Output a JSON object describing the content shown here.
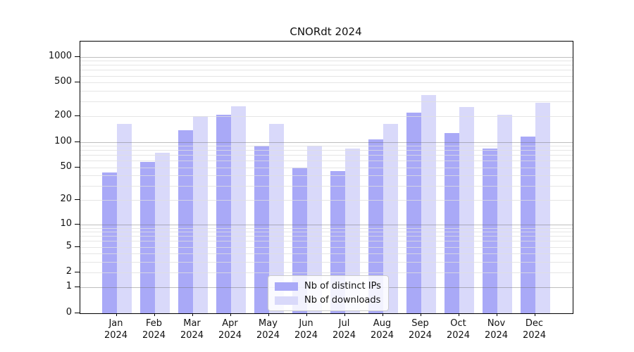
{
  "chart_data": {
    "type": "bar",
    "title": "CNORdt 2024",
    "categories": [
      "Jan 2024",
      "Feb 2024",
      "Mar 2024",
      "Apr 2024",
      "May 2024",
      "Jun 2024",
      "Jul 2024",
      "Aug 2024",
      "Sep 2024",
      "Oct 2024",
      "Nov 2024",
      "Dec 2024"
    ],
    "series": [
      {
        "name": "Nb of distinct IPs",
        "color": "#a9a9f7",
        "values": [
          43,
          58,
          137,
          210,
          91,
          50,
          45,
          108,
          222,
          128,
          83,
          116
        ]
      },
      {
        "name": "Nb of downloads",
        "color": "#d9d9fa",
        "values": [
          162,
          74,
          200,
          265,
          162,
          90,
          83,
          162,
          355,
          258,
          209,
          291
        ]
      }
    ],
    "xlabel": "",
    "ylabel": "",
    "yscale": "log1p",
    "ylim": [
      0,
      1486
    ],
    "ytick_labels": [
      "1000",
      "500",
      "200",
      "100",
      "50",
      "20",
      "10",
      "5",
      "2",
      "1",
      "0"
    ],
    "ytick_values": [
      1000,
      500,
      200,
      100,
      50,
      20,
      10,
      5,
      2,
      1,
      0
    ],
    "major_gridline_values": [
      1,
      10,
      100,
      1000
    ],
    "minor_gridline_values": [
      2,
      3,
      4,
      5,
      6,
      7,
      8,
      9,
      20,
      30,
      40,
      60,
      70,
      80,
      90,
      200,
      300,
      400,
      600,
      700,
      800,
      900,
      500,
      50
    ],
    "grid": true,
    "legend_position": "lower center"
  }
}
